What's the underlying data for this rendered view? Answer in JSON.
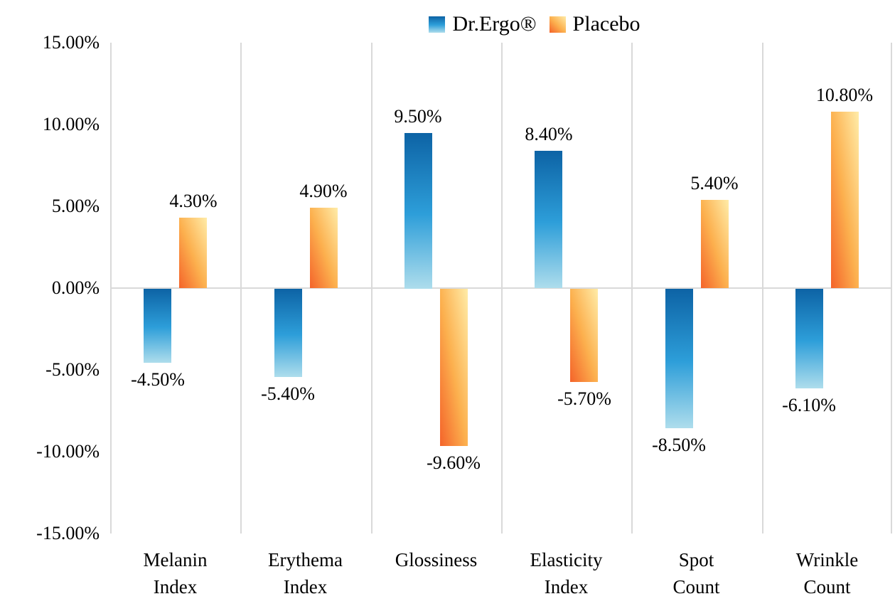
{
  "legend": {
    "items": [
      {
        "label": "Dr.Ergo®",
        "swatch": "blue-gradient"
      },
      {
        "label": "Placebo",
        "swatch": "orange-gradient"
      }
    ]
  },
  "chart_data": {
    "type": "bar",
    "title": "",
    "xlabel": "",
    "ylabel": "",
    "categories": [
      "Melanin Index",
      "Erythema Index",
      "Glossiness",
      "Elasticity Index",
      "Spot Count",
      "Wrinkle Count"
    ],
    "series": [
      {
        "name": "Dr.Ergo®",
        "values": [
          -4.5,
          -5.4,
          9.5,
          8.4,
          -8.5,
          -6.1
        ],
        "data_labels": [
          "-4.50%",
          "-5.40%",
          "9.50%",
          "8.40%",
          "-8.50%",
          "-6.10%"
        ],
        "gradient_stops": [
          "#0d63a5",
          "#2d9ed9",
          "#aeddec"
        ],
        "gradient_direction": "to bottom"
      },
      {
        "name": "Placebo",
        "values": [
          4.3,
          4.9,
          -9.6,
          -5.7,
          5.4,
          10.8
        ],
        "data_labels": [
          "4.30%",
          "4.90%",
          "-9.60%",
          "-5.70%",
          "5.40%",
          "10.80%"
        ],
        "gradient_stops": [
          "#ffeca8",
          "#fcb04e",
          "#f4632a"
        ],
        "gradient_direction": "to bottom left"
      }
    ],
    "ylim": [
      -15,
      15
    ],
    "ytick_step": 5,
    "ytick_labels": [
      "15.00%",
      "10.00%",
      "5.00%",
      "0.00%",
      "-5.00%",
      "-10.00%",
      "-15.00%"
    ],
    "legend_position": "top-center",
    "grid": {
      "vertical_gridlines": true,
      "horizontal_gridlines": false,
      "zero_line": true,
      "gridline_color": "#d9d9d9"
    },
    "text_color": "#000000",
    "background_color": "#ffffff"
  }
}
